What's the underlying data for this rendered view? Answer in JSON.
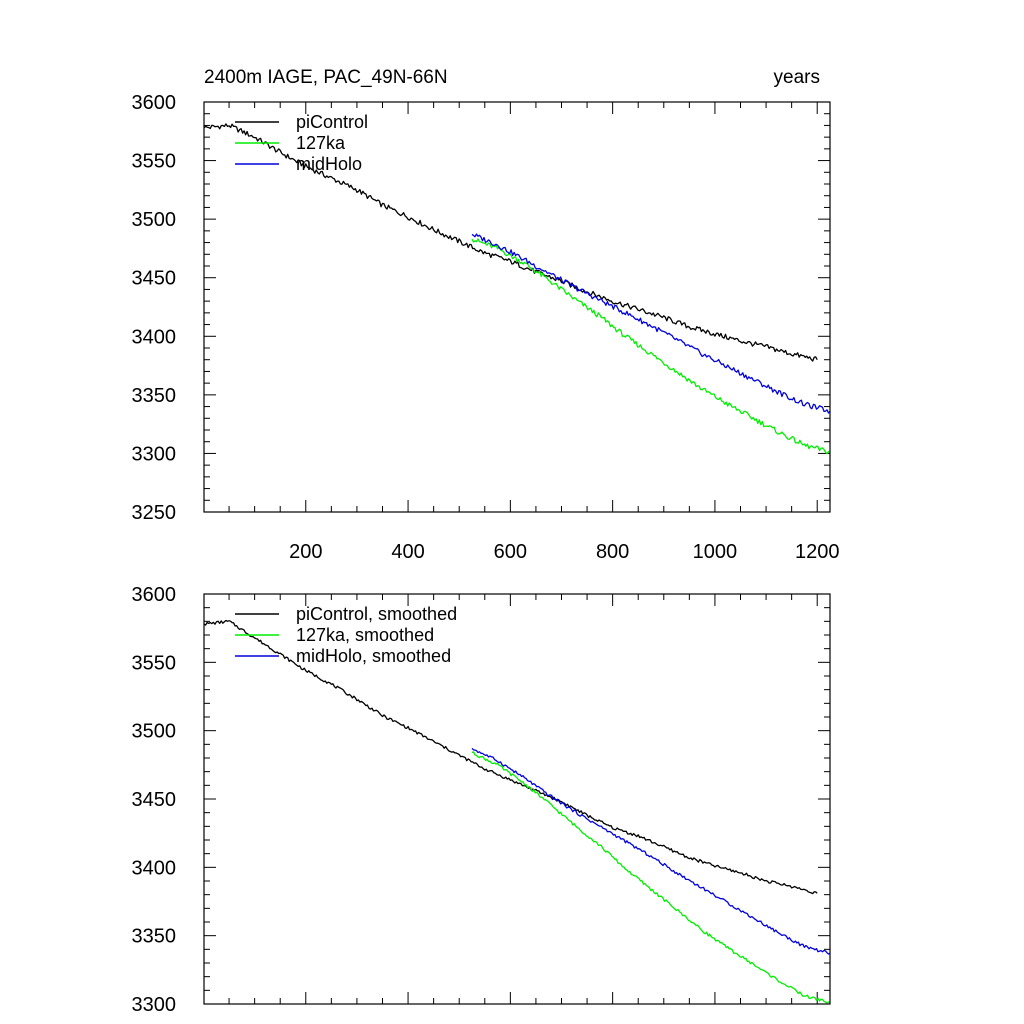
{
  "figure": {
    "title_left": "2400m IAGE, PAC_49N-66N",
    "title_right": "years"
  },
  "colors": {
    "piControl": "#000000",
    "127ka": "#00ee00",
    "midHolo": "#0000dd"
  },
  "chart_data": [
    {
      "type": "line",
      "panel": "top",
      "title": "2400m IAGE, PAC_49N-66N",
      "units": "years",
      "xlim": [
        1,
        1225
      ],
      "ylim": [
        3250,
        3600
      ],
      "xticks": [
        200,
        400,
        600,
        800,
        1000,
        1200
      ],
      "xtick_labels": [
        "200",
        "400",
        "600",
        "800",
        "1000",
        "1200"
      ],
      "yticks": [
        3250,
        3300,
        3350,
        3400,
        3450,
        3500,
        3550,
        3600
      ],
      "ytick_labels": [
        "3250",
        "3300",
        "3350",
        "3400",
        "3450",
        "3500",
        "3550",
        "3600"
      ],
      "legend_position": "top-left",
      "series": [
        {
          "name": "piControl",
          "color": "#000000",
          "x": [
            1,
            50,
            100,
            150,
            200,
            250,
            300,
            350,
            400,
            450,
            500,
            550,
            600,
            650,
            700,
            750,
            800,
            850,
            900,
            950,
            1000,
            1050,
            1100,
            1150,
            1200
          ],
          "y": [
            3578,
            3580,
            3570,
            3557,
            3545,
            3535,
            3525,
            3512,
            3502,
            3491,
            3481,
            3471,
            3464,
            3455,
            3447,
            3438,
            3430,
            3423,
            3416,
            3408,
            3402,
            3396,
            3391,
            3385,
            3380
          ]
        },
        {
          "name": "127ka",
          "color": "#00ee00",
          "x": [
            525,
            575,
            625,
            675,
            725,
            775,
            825,
            875,
            925,
            975,
            1025,
            1075,
            1125,
            1175,
            1225
          ],
          "y": [
            3483,
            3475,
            3463,
            3448,
            3432,
            3417,
            3400,
            3385,
            3370,
            3355,
            3342,
            3330,
            3318,
            3307,
            3301
          ]
        },
        {
          "name": "midHolo",
          "color": "#0000dd",
          "x": [
            525,
            575,
            625,
            675,
            725,
            775,
            825,
            875,
            925,
            975,
            1025,
            1075,
            1125,
            1175,
            1225
          ],
          "y": [
            3487,
            3478,
            3466,
            3454,
            3442,
            3431,
            3420,
            3409,
            3397,
            3385,
            3374,
            3363,
            3352,
            3342,
            3336
          ]
        }
      ]
    },
    {
      "type": "line",
      "panel": "bottom",
      "title": "",
      "xlim": [
        1,
        1225
      ],
      "ylim": [
        3300,
        3600
      ],
      "xticks": [
        200,
        400,
        600,
        800,
        1000,
        1200
      ],
      "yticks": [
        3300,
        3350,
        3400,
        3450,
        3500,
        3550,
        3600
      ],
      "ytick_labels": [
        "3300",
        "3350",
        "3400",
        "3450",
        "3500",
        "3550",
        "3600"
      ],
      "legend_position": "top-left",
      "series": [
        {
          "name": "piControl, smoothed",
          "color": "#000000",
          "x": [
            1,
            50,
            100,
            150,
            200,
            250,
            300,
            350,
            400,
            450,
            500,
            550,
            600,
            650,
            700,
            750,
            800,
            850,
            900,
            950,
            1000,
            1050,
            1100,
            1150,
            1200
          ],
          "y": [
            3578,
            3580,
            3568,
            3556,
            3544,
            3534,
            3523,
            3511,
            3502,
            3492,
            3482,
            3472,
            3464,
            3456,
            3448,
            3438,
            3429,
            3423,
            3415,
            3407,
            3401,
            3396,
            3390,
            3386,
            3381
          ]
        },
        {
          "name": "127ka, smoothed",
          "color": "#00ee00",
          "x": [
            525,
            575,
            625,
            675,
            725,
            775,
            825,
            875,
            925,
            975,
            1025,
            1075,
            1125,
            1175,
            1225
          ],
          "y": [
            3484,
            3475,
            3462,
            3447,
            3431,
            3416,
            3399,
            3384,
            3369,
            3354,
            3341,
            3329,
            3317,
            3306,
            3301
          ]
        },
        {
          "name": "midHolo, smoothed",
          "color": "#0000dd",
          "x": [
            525,
            575,
            625,
            675,
            725,
            775,
            825,
            875,
            925,
            975,
            1025,
            1075,
            1125,
            1175,
            1225
          ],
          "y": [
            3487,
            3478,
            3466,
            3453,
            3441,
            3430,
            3419,
            3408,
            3396,
            3385,
            3374,
            3363,
            3352,
            3342,
            3337
          ]
        }
      ]
    }
  ]
}
